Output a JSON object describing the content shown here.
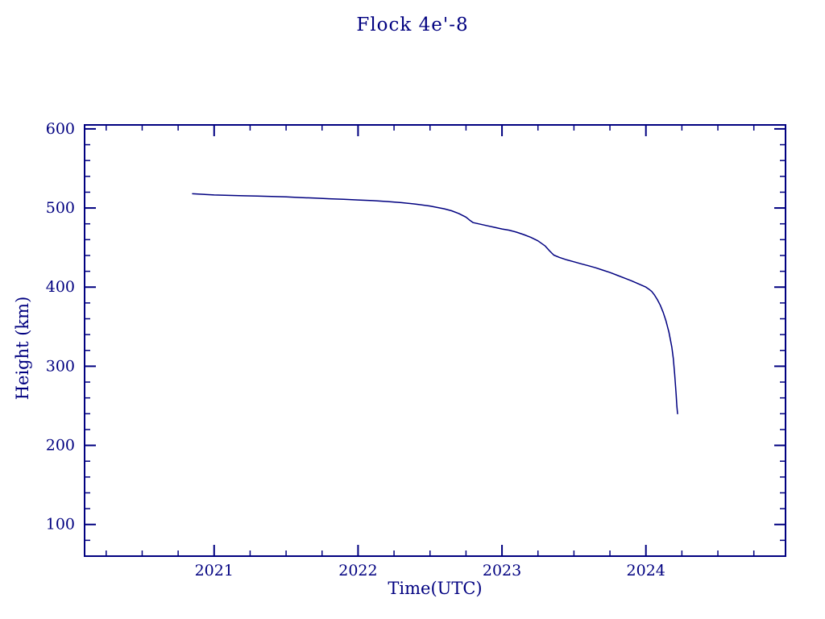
{
  "title": "Flock 4e'-8",
  "chart_data": {
    "type": "line",
    "title": "Flock 4e'-8",
    "xlabel": "Time(UTC)",
    "ylabel": "Height (km)",
    "xlim": [
      2020.1,
      2024.97
    ],
    "ylim": [
      60,
      605
    ],
    "x_ticks": [
      2021,
      2022,
      2023,
      2024
    ],
    "x_minor_step": 0.25,
    "y_ticks": [
      100,
      200,
      300,
      400,
      500,
      600
    ],
    "y_minor_step": 20,
    "grid": false,
    "legend": "none",
    "line_color": "#000080",
    "axis_color": "#000080",
    "background": "#ffffff",
    "series": [
      {
        "name": "Flock 4e'-8 height",
        "points": [
          [
            2020.85,
            518
          ],
          [
            2020.9,
            517.5
          ],
          [
            2021.0,
            516.5
          ],
          [
            2021.1,
            516
          ],
          [
            2021.2,
            515.5
          ],
          [
            2021.3,
            515
          ],
          [
            2021.4,
            514.5
          ],
          [
            2021.5,
            514
          ],
          [
            2021.6,
            513.2
          ],
          [
            2021.7,
            512.5
          ],
          [
            2021.8,
            511.7
          ],
          [
            2021.9,
            511
          ],
          [
            2022.0,
            510.2
          ],
          [
            2022.1,
            509.3
          ],
          [
            2022.2,
            508.2
          ],
          [
            2022.3,
            506.8
          ],
          [
            2022.4,
            505
          ],
          [
            2022.5,
            502.5
          ],
          [
            2022.6,
            499
          ],
          [
            2022.65,
            496.5
          ],
          [
            2022.7,
            493
          ],
          [
            2022.75,
            488.5
          ],
          [
            2022.78,
            484
          ],
          [
            2022.8,
            481.5
          ],
          [
            2022.85,
            479.5
          ],
          [
            2022.9,
            477.5
          ],
          [
            2022.95,
            475.5
          ],
          [
            2023.0,
            473.5
          ],
          [
            2023.05,
            472
          ],
          [
            2023.1,
            469.5
          ],
          [
            2023.15,
            466.5
          ],
          [
            2023.2,
            463
          ],
          [
            2023.25,
            458.5
          ],
          [
            2023.3,
            452
          ],
          [
            2023.33,
            446
          ],
          [
            2023.36,
            440.5
          ],
          [
            2023.4,
            437.5
          ],
          [
            2023.45,
            434.5
          ],
          [
            2023.5,
            432
          ],
          [
            2023.55,
            429.5
          ],
          [
            2023.6,
            427
          ],
          [
            2023.65,
            424.5
          ],
          [
            2023.7,
            421.5
          ],
          [
            2023.75,
            418.5
          ],
          [
            2023.8,
            415
          ],
          [
            2023.85,
            411.5
          ],
          [
            2023.9,
            408
          ],
          [
            2023.95,
            404
          ],
          [
            2024.0,
            400
          ],
          [
            2024.02,
            397.5
          ],
          [
            2024.04,
            394.5
          ],
          [
            2024.06,
            390
          ],
          [
            2024.08,
            384
          ],
          [
            2024.1,
            377
          ],
          [
            2024.12,
            368
          ],
          [
            2024.14,
            357
          ],
          [
            2024.16,
            343
          ],
          [
            2024.18,
            324
          ],
          [
            2024.19,
            310
          ],
          [
            2024.2,
            290
          ],
          [
            2024.21,
            265
          ],
          [
            2024.215,
            250
          ],
          [
            2024.22,
            240
          ]
        ]
      }
    ]
  }
}
